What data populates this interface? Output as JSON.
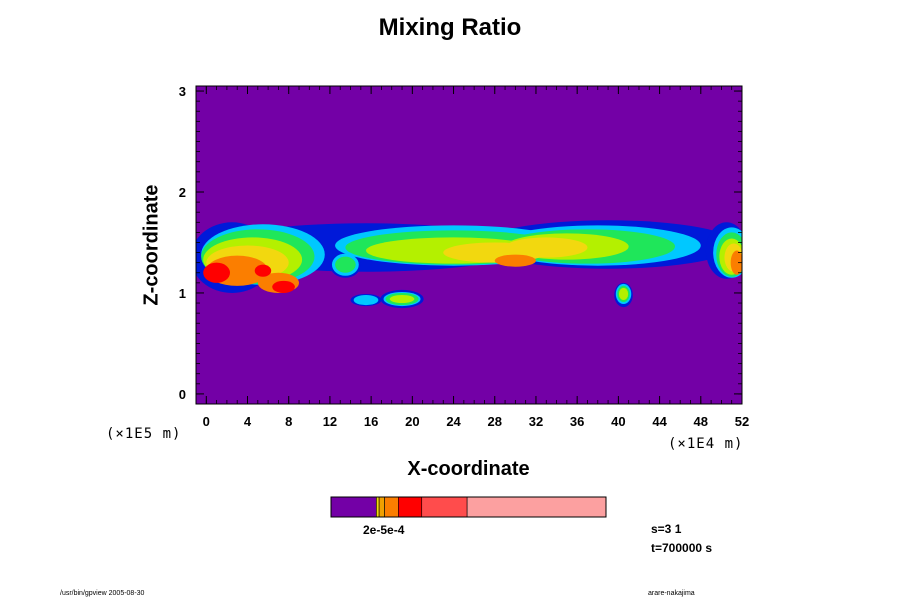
{
  "chart_data": {
    "type": "heatmap",
    "title": "Mixing Ratio",
    "xlabel": "X-coordinate",
    "ylabel": "Z-coordinate",
    "x_unit": "(×1E4 m)",
    "y_unit": "(×1E5 m)",
    "xlim": [
      -1,
      52
    ],
    "ylim": [
      -0.1,
      3.05
    ],
    "x_ticks": [
      "0",
      "4",
      "8",
      "12",
      "16",
      "20",
      "24",
      "28",
      "32",
      "36",
      "40",
      "44",
      "48",
      "52"
    ],
    "y_ticks": [
      "0",
      "1",
      "2",
      "3"
    ],
    "background_color": "#7300a6",
    "colorbar_label": "2e-5e-4",
    "colorbar_colors": [
      "#7300a6",
      "#f2d80f",
      "#f0a000",
      "#fb7e00",
      "#ff0000",
      "#ff4c4c",
      "#fca0a0"
    ],
    "colorbar_fractions": [
      0.165,
      0.01,
      0.02,
      0.05,
      0.085,
      0.165,
      0.505
    ],
    "layers": [
      {
        "color": "#0019d9",
        "blobs": [
          [
            15.5,
            1.45,
            15.5,
            0.24
          ],
          [
            39,
            1.48,
            12.5,
            0.24
          ],
          [
            2.5,
            1.35,
            4,
            0.35
          ],
          [
            19,
            0.94,
            2.1,
            0.09
          ],
          [
            40.5,
            0.98,
            0.9,
            0.12
          ],
          [
            15.5,
            0.93,
            1.5,
            0.06
          ],
          [
            13.5,
            1.28,
            1.5,
            0.13
          ],
          [
            50.5,
            1.42,
            2,
            0.28
          ]
        ]
      },
      {
        "color": "#00c8ff",
        "blobs": [
          [
            5.5,
            1.38,
            6,
            0.3
          ],
          [
            24,
            1.47,
            11.5,
            0.2
          ],
          [
            38,
            1.47,
            10,
            0.2
          ],
          [
            13.5,
            1.28,
            1.3,
            0.11
          ],
          [
            19,
            0.94,
            1.8,
            0.07
          ],
          [
            40.5,
            0.99,
            0.75,
            0.1
          ],
          [
            15.5,
            0.93,
            1.2,
            0.05
          ],
          [
            51,
            1.4,
            1.8,
            0.25
          ]
        ]
      },
      {
        "color": "#1fe65a",
        "blobs": [
          [
            5,
            1.36,
            5.5,
            0.27
          ],
          [
            24,
            1.45,
            10.5,
            0.17
          ],
          [
            37,
            1.46,
            8.5,
            0.17
          ],
          [
            19,
            0.94,
            1.6,
            0.06
          ],
          [
            40.5,
            0.99,
            0.6,
            0.08
          ],
          [
            51,
            1.38,
            1.5,
            0.22
          ],
          [
            13.5,
            1.28,
            1,
            0.08
          ]
        ]
      },
      {
        "color": "#b4f000",
        "blobs": [
          [
            4.5,
            1.33,
            4.8,
            0.22
          ],
          [
            24,
            1.42,
            8.5,
            0.13
          ],
          [
            35,
            1.46,
            6,
            0.13
          ],
          [
            19,
            0.94,
            1.2,
            0.04
          ],
          [
            40.5,
            0.99,
            0.45,
            0.06
          ],
          [
            51,
            1.36,
            1.2,
            0.18
          ]
        ]
      },
      {
        "color": "#f2d80f",
        "blobs": [
          [
            4,
            1.3,
            4,
            0.17
          ],
          [
            28,
            1.4,
            5,
            0.1
          ],
          [
            33,
            1.45,
            4,
            0.1
          ],
          [
            51.2,
            1.35,
            0.9,
            0.14
          ]
        ]
      },
      {
        "color": "#fb7e00",
        "blobs": [
          [
            3,
            1.22,
            3,
            0.15
          ],
          [
            7,
            1.1,
            2,
            0.1
          ],
          [
            30,
            1.32,
            2,
            0.06
          ],
          [
            51.5,
            1.3,
            0.6,
            0.12
          ]
        ]
      },
      {
        "color": "#ff0000",
        "blobs": [
          [
            1,
            1.2,
            1.3,
            0.1
          ],
          [
            7.5,
            1.06,
            1.1,
            0.06
          ],
          [
            5.5,
            1.22,
            0.8,
            0.06
          ]
        ]
      }
    ]
  },
  "notes": {
    "s_line": "s=3 1",
    "t_line": "t=700000 s"
  },
  "footer": {
    "left": "/usr/bin/gpview 2005-08-30",
    "right": "arare-nakajima"
  }
}
